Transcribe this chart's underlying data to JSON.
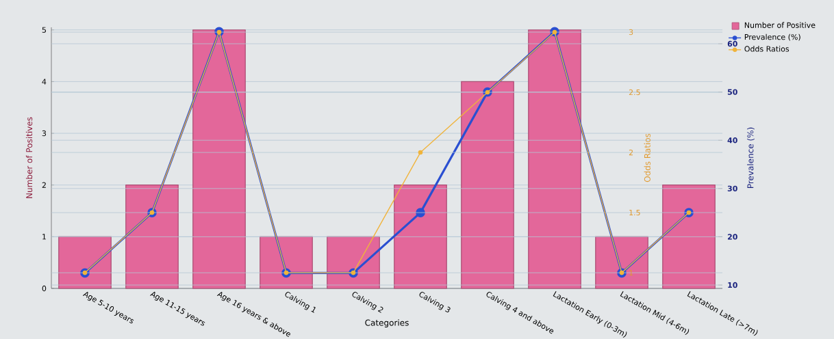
{
  "chart_data": {
    "type": "bar",
    "xlabel": "Categories",
    "ylabel": "Number of Positives",
    "y2label": "Prevalence (%)",
    "y3label": "Odds Ratios",
    "categories": [
      "Age 5-10 years",
      "Age 11-15 years",
      "Age 16 years & above",
      "Calving 1",
      "Calving 2",
      "Calving 3",
      "Calving 4 and above",
      "Lactation Early (0-3m)",
      "Lactation Mid (4-6m)",
      "Lactation Late (>7m)"
    ],
    "series": [
      {
        "name": "Number of Positive",
        "color": "#e3679a",
        "values": [
          1,
          2,
          5,
          1,
          1,
          2,
          4,
          5,
          1,
          2
        ]
      },
      {
        "name": "Prevalence (%)",
        "type": "line",
        "axis": "y2",
        "color": "#2a4fd1",
        "values": [
          12.5,
          25,
          62.5,
          12.5,
          12.5,
          25,
          50,
          62.5,
          12.5,
          25
        ]
      },
      {
        "name": "Odds Ratios",
        "type": "line",
        "axis": "y3",
        "color": "#f0b43c",
        "values": [
          1,
          1.5,
          3,
          1,
          1,
          2,
          2.5,
          3,
          1,
          1.5
        ]
      }
    ],
    "ylim": [
      0,
      5.05
    ],
    "yticks": [
      0,
      1,
      2,
      3,
      4,
      5
    ],
    "y2lim": [
      9.3,
      63.4
    ],
    "y2ticks": [
      10,
      20,
      30,
      40,
      50,
      60
    ],
    "y3lim": [
      0.87,
      3.04
    ],
    "y3ticks": [
      1,
      1.5,
      2,
      2.5,
      3
    ],
    "grid": "y",
    "legend": "top right",
    "marker": "circle"
  }
}
